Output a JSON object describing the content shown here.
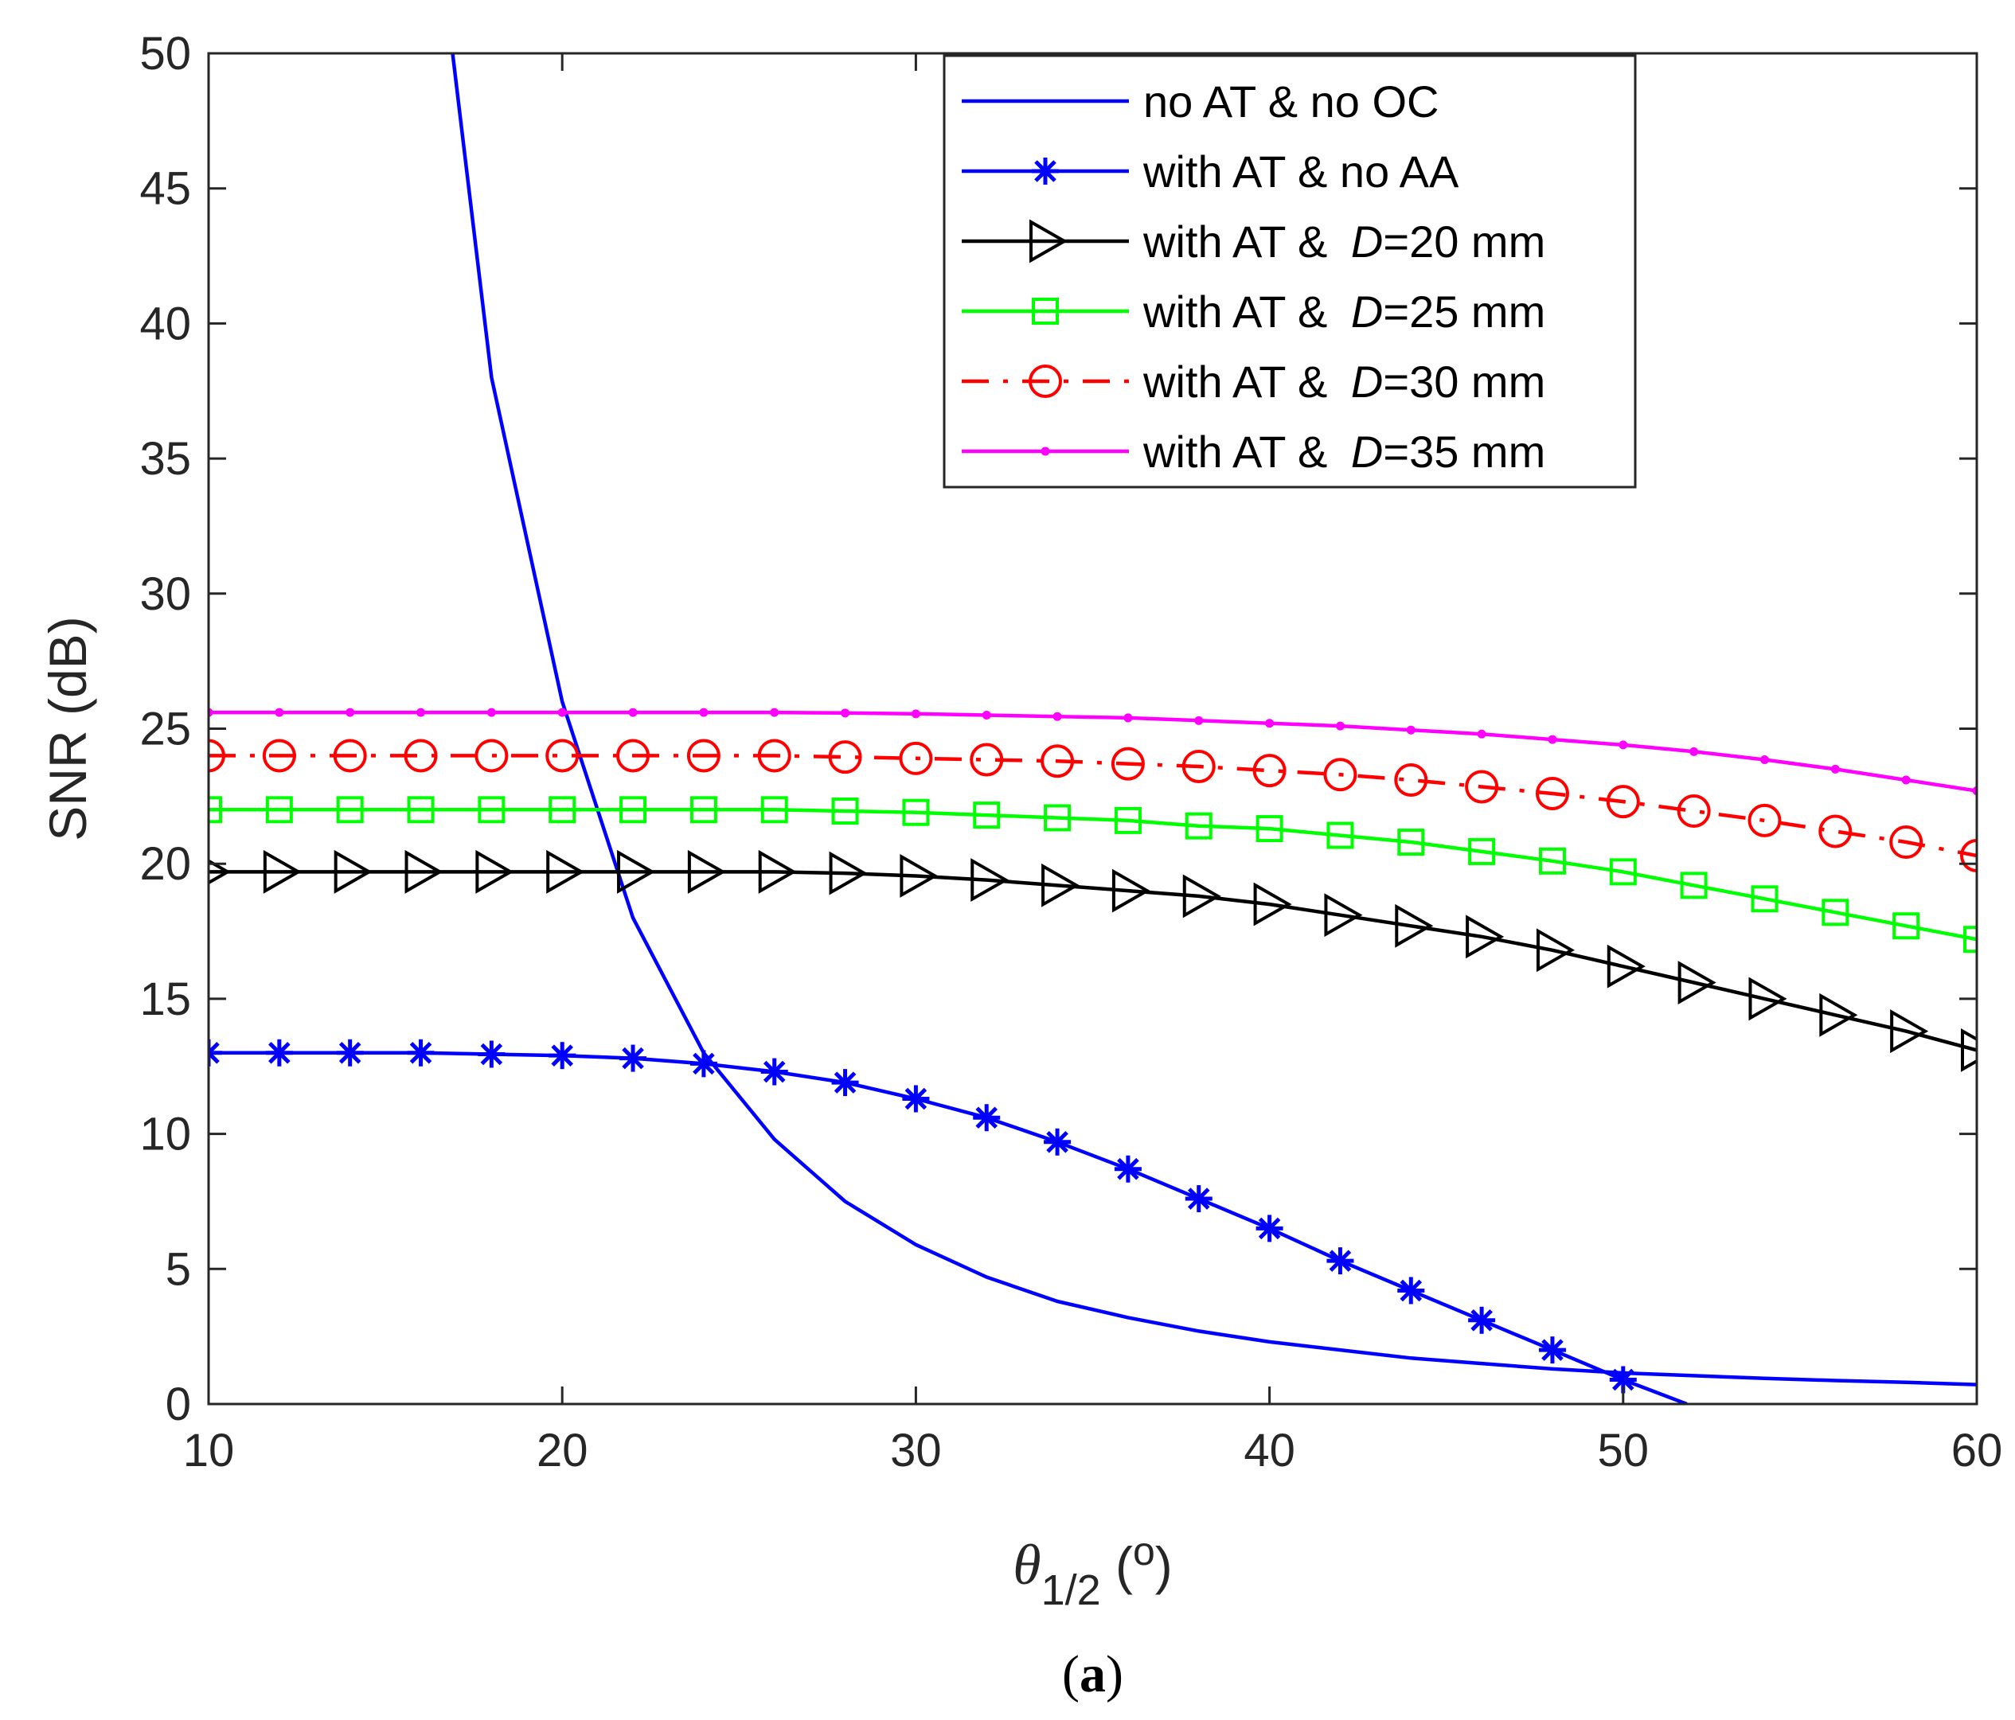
{
  "chart_data": {
    "type": "line",
    "title": "",
    "ylabel": "SNR (dB)",
    "xlabel": {
      "symbol": "θ",
      "subscript": "1/2",
      "unit_open": " (",
      "unit": "o",
      "unit_close": ")"
    },
    "caption": {
      "open": "(",
      "letter": "a",
      "close": ")"
    },
    "xlim": [
      10,
      60
    ],
    "ylim": [
      0,
      50
    ],
    "xticks": [
      10,
      20,
      30,
      40,
      50,
      60
    ],
    "yticks": [
      0,
      5,
      10,
      15,
      20,
      25,
      30,
      35,
      40,
      45,
      50
    ],
    "grid": false,
    "legend_position": "top-right",
    "series": [
      {
        "name": "no AT & no OC",
        "legend_parts": [
          "no AT & no OC"
        ],
        "color": "#0000ff",
        "marker": "none",
        "dash": "solid",
        "x": [
          16.9,
          18,
          20,
          22,
          24,
          26,
          28,
          30,
          32,
          34,
          36,
          38,
          40,
          42,
          44,
          46,
          48,
          50,
          52,
          54,
          56,
          58,
          60
        ],
        "y": [
          50,
          38,
          26,
          18,
          13,
          9.8,
          7.5,
          5.9,
          4.7,
          3.8,
          3.2,
          2.7,
          2.3,
          2.0,
          1.7,
          1.5,
          1.3,
          1.15,
          1.05,
          0.95,
          0.87,
          0.8,
          0.72
        ]
      },
      {
        "name": "with AT & no AA",
        "legend_parts": [
          "with AT & no AA"
        ],
        "color": "#0000ff",
        "marker": "asterisk",
        "dash": "solid",
        "x": [
          10,
          12,
          14,
          16,
          18,
          20,
          22,
          24,
          26,
          28,
          30,
          32,
          34,
          36,
          38,
          40,
          42,
          44,
          46,
          48,
          50,
          51.8
        ],
        "y": [
          13.0,
          13.0,
          13.0,
          13.0,
          12.95,
          12.9,
          12.8,
          12.6,
          12.3,
          11.9,
          11.3,
          10.6,
          9.7,
          8.7,
          7.6,
          6.5,
          5.3,
          4.2,
          3.1,
          2.0,
          0.9,
          0
        ],
        "marker_count": 21
      },
      {
        "name": "with AT & D=20 mm",
        "legend_parts": [
          "with AT & ",
          "D",
          "=20 mm"
        ],
        "color": "#000000",
        "marker": "triangle-right",
        "dash": "solid",
        "x": [
          10,
          12,
          14,
          16,
          18,
          20,
          22,
          24,
          26,
          28,
          30,
          32,
          34,
          36,
          38,
          40,
          42,
          44,
          46,
          48,
          50,
          52,
          54,
          56,
          58,
          60
        ],
        "y": [
          19.7,
          19.7,
          19.7,
          19.7,
          19.7,
          19.7,
          19.7,
          19.7,
          19.7,
          19.65,
          19.55,
          19.4,
          19.2,
          19.0,
          18.8,
          18.5,
          18.1,
          17.7,
          17.3,
          16.8,
          16.2,
          15.6,
          15.0,
          14.4,
          13.8,
          13.1
        ]
      },
      {
        "name": "with AT & D=25 mm",
        "legend_parts": [
          "with AT & ",
          "D",
          "=25 mm"
        ],
        "color": "#00ff00",
        "marker": "square",
        "dash": "solid",
        "x": [
          10,
          12,
          14,
          16,
          18,
          20,
          22,
          24,
          26,
          28,
          30,
          32,
          34,
          36,
          38,
          40,
          42,
          44,
          46,
          48,
          50,
          52,
          54,
          56,
          58,
          60
        ],
        "y": [
          22.0,
          22.0,
          22.0,
          22.0,
          22.0,
          22.0,
          22.0,
          22.0,
          22.0,
          21.95,
          21.9,
          21.8,
          21.7,
          21.6,
          21.4,
          21.3,
          21.05,
          20.8,
          20.45,
          20.1,
          19.7,
          19.2,
          18.7,
          18.2,
          17.7,
          17.2
        ]
      },
      {
        "name": "with AT & D=30 mm",
        "legend_parts": [
          "with AT & ",
          "D",
          "=30 mm"
        ],
        "color": "#ff0000",
        "marker": "circle",
        "dash": "dashdot",
        "x": [
          10,
          12,
          14,
          16,
          18,
          20,
          22,
          24,
          26,
          28,
          30,
          32,
          34,
          36,
          38,
          40,
          42,
          44,
          46,
          48,
          50,
          52,
          54,
          56,
          58,
          60
        ],
        "y": [
          24.0,
          24.0,
          24.0,
          24.0,
          24.0,
          24.0,
          24.0,
          24.0,
          24.0,
          23.95,
          23.9,
          23.85,
          23.8,
          23.7,
          23.6,
          23.45,
          23.3,
          23.1,
          22.85,
          22.6,
          22.3,
          21.95,
          21.6,
          21.2,
          20.8,
          20.3
        ]
      },
      {
        "name": "with AT & D=35 mm",
        "legend_parts": [
          "with AT & ",
          "D",
          "=35 mm"
        ],
        "color": "#ff00ff",
        "marker": "dot",
        "dash": "solid",
        "x": [
          10,
          12,
          14,
          16,
          18,
          20,
          22,
          24,
          26,
          28,
          30,
          32,
          34,
          36,
          38,
          40,
          42,
          44,
          46,
          48,
          50,
          52,
          54,
          56,
          58,
          60
        ],
        "y": [
          25.6,
          25.6,
          25.6,
          25.6,
          25.6,
          25.6,
          25.6,
          25.6,
          25.6,
          25.58,
          25.55,
          25.5,
          25.45,
          25.4,
          25.3,
          25.2,
          25.1,
          24.95,
          24.8,
          24.6,
          24.4,
          24.15,
          23.85,
          23.5,
          23.1,
          22.7
        ]
      }
    ]
  }
}
